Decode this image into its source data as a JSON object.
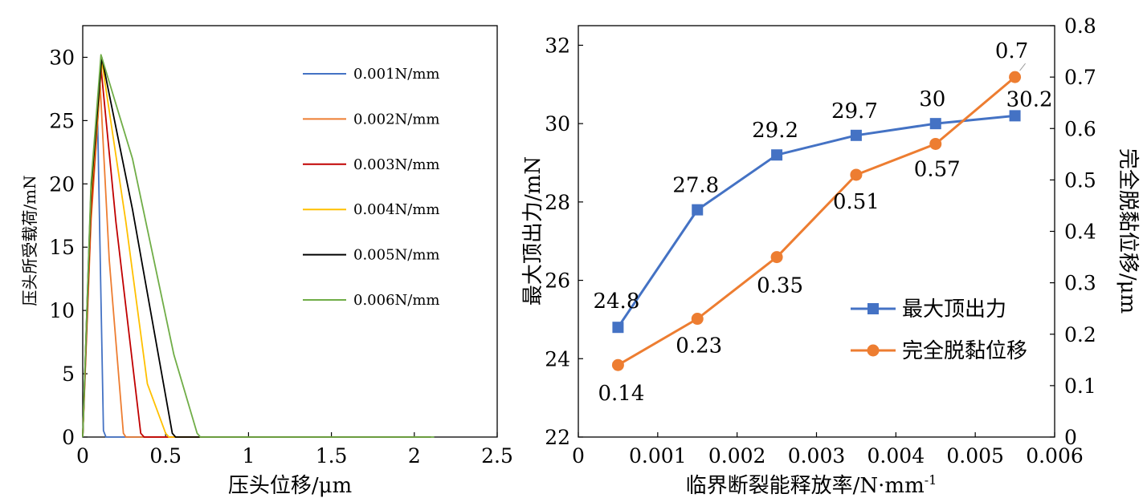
{
  "chart_data": [
    {
      "type": "line",
      "xlabel": "压头位移/μm",
      "ylabel": "压头所受载荷/mN",
      "xlim": [
        0,
        2.5
      ],
      "ylim": [
        0,
        32.5
      ],
      "x_ticks": [
        "0",
        "0.5",
        "1",
        "1.5",
        "2",
        "2.5"
      ],
      "y_ticks": [
        "0",
        "5",
        "10",
        "15",
        "20",
        "25",
        "30"
      ],
      "grid": false,
      "legend_position": "top-right",
      "series": [
        {
          "name": "0.001N/mm",
          "color": "#4472C4",
          "x": [
            0,
            0.04,
            0.09,
            0.125,
            0.14,
            2.1
          ],
          "y": [
            0,
            16,
            24.8,
            0.5,
            0,
            0
          ]
        },
        {
          "name": "0.002N/mm",
          "color": "#ED7D31",
          "x": [
            0,
            0.05,
            0.105,
            0.16,
            0.245,
            0.26,
            2.1
          ],
          "y": [
            0,
            17,
            27.8,
            14,
            0.3,
            0,
            0
          ]
        },
        {
          "name": "0.003N/mm",
          "color": "#C00000",
          "x": [
            0,
            0.05,
            0.11,
            0.2,
            0.35,
            0.37,
            2.1
          ],
          "y": [
            0,
            18,
            29.2,
            17,
            0.3,
            0,
            0
          ]
        },
        {
          "name": "0.004N/mm",
          "color": "#FFC000",
          "x": [
            0,
            0.05,
            0.115,
            0.26,
            0.39,
            0.5,
            0.52,
            2.1
          ],
          "y": [
            0,
            19,
            29.7,
            17,
            4.2,
            0.3,
            0,
            0
          ]
        },
        {
          "name": "0.005N/mm",
          "color": "#000000",
          "x": [
            0,
            0.05,
            0.115,
            0.3,
            0.54,
            0.56,
            2.1
          ],
          "y": [
            0,
            19.5,
            30,
            18,
            0.3,
            0,
            0
          ]
        },
        {
          "name": "0.006N/mm",
          "color": "#70AD47",
          "x": [
            0,
            0.05,
            0.11,
            0.3,
            0.55,
            0.69,
            0.71,
            2.12
          ],
          "y": [
            0,
            20,
            30.2,
            22,
            6.5,
            0.3,
            0,
            0
          ]
        }
      ]
    },
    {
      "type": "line",
      "xlabel": "临界断裂能释放率/N·mm",
      "xlabel_sup": "-1",
      "ylabel": "最大顶出力/mN",
      "ylabel_right": "完全脱黏位移/μm",
      "xlim": [
        0,
        0.006
      ],
      "ylim": [
        22,
        32.5
      ],
      "ylim_right": [
        0,
        0.8
      ],
      "x_ticks": [
        "0",
        "0.001",
        "0.002",
        "0.003",
        "0.004",
        "0.005",
        "0.006"
      ],
      "y_ticks": [
        "22",
        "24",
        "26",
        "28",
        "30",
        "32"
      ],
      "y_ticks_right": [
        "0",
        "0.1",
        "0.2",
        "0.3",
        "0.4",
        "0.5",
        "0.6",
        "0.7",
        "0.8"
      ],
      "grid": false,
      "legend_position": "bottom-right",
      "x": [
        0.0005,
        0.0015,
        0.0025,
        0.0035,
        0.0045,
        0.0055
      ],
      "series": [
        {
          "name": "最大顶出力",
          "axis": "left",
          "color": "#4472C4",
          "marker": "square",
          "values": [
            24.8,
            27.8,
            29.2,
            29.7,
            30,
            30.2
          ],
          "labels": [
            "24.8",
            "27.8",
            "29.2",
            "29.7",
            "30",
            "30.2"
          ]
        },
        {
          "name": "完全脱黏位移",
          "axis": "right",
          "color": "#ED7D31",
          "marker": "circle",
          "values": [
            0.14,
            0.23,
            0.35,
            0.51,
            0.57,
            0.7
          ],
          "labels": [
            "0.14",
            "0.23",
            "0.35",
            "0.51",
            "0.57",
            "0.7"
          ]
        }
      ]
    }
  ]
}
